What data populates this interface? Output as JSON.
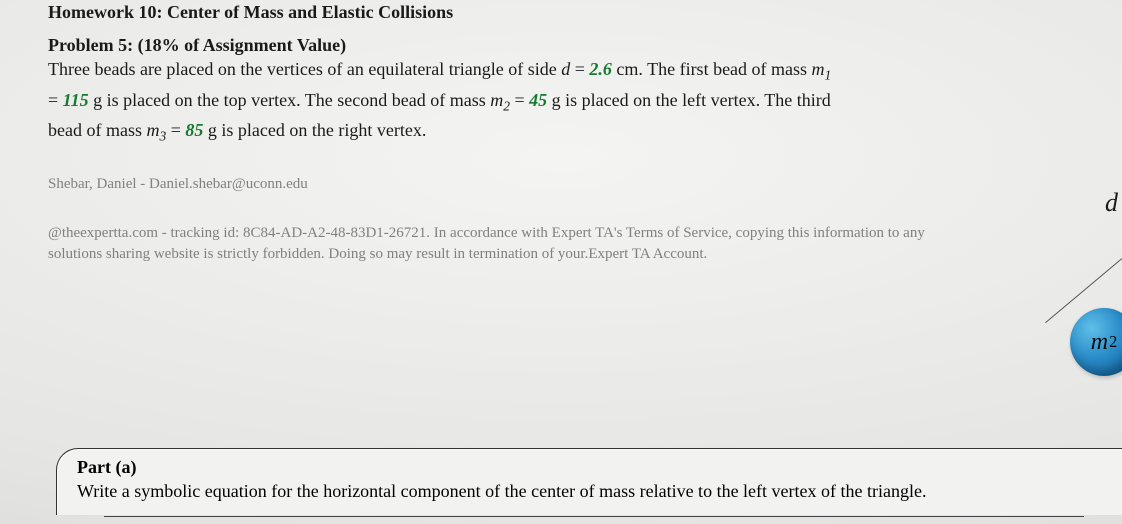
{
  "header": {
    "hw_title": "Homework 10: Center of Mass and Elastic Collisions"
  },
  "problem": {
    "title": "Problem 5: (18% of Assignment Value)",
    "d_val": "2.6",
    "m1_val": "115",
    "m2_val": "45",
    "m3_val": "85"
  },
  "student": {
    "line": "Shebar, Daniel - Daniel.shebar@uconn.edu"
  },
  "copyright": {
    "text": "@theexpertta.com - tracking id: 8C84-AD-A2-48-83D1-26721. In accordance with Expert TA's Terms of Service, copying this information to any solutions sharing website is strictly forbidden. Doing so may result in termination of your.Expert TA Account."
  },
  "part": {
    "label": "Part (a)",
    "text": "Write a symbolic equation for the horizontal component of the center of mass relative to the left vertex of the triangle."
  },
  "diagram": {
    "d_label": "d",
    "bead_label_m": "m",
    "bead_label_sub": "2",
    "bead_color_inner": "#5fbfe8",
    "bead_color_mid": "#2a8cc9",
    "bead_color_outer": "#0a5a94"
  }
}
